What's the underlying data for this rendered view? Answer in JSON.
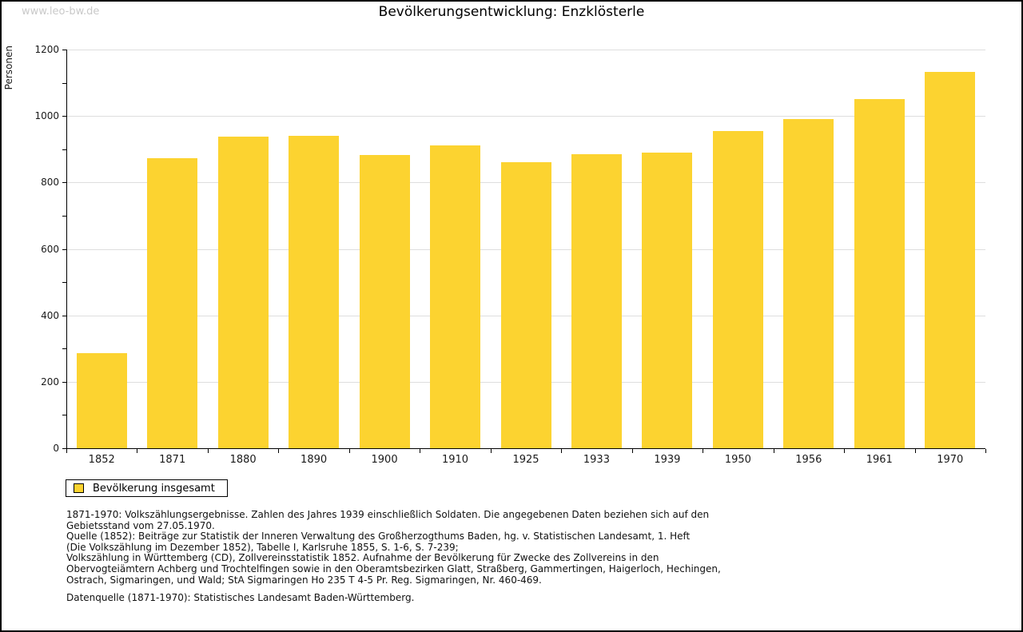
{
  "watermark": "www.leo-bw.de",
  "header": {
    "title": "Bevölkerungsentwicklung: Enzklösterle"
  },
  "legend": {
    "label": "Bevölkerung insgesamt"
  },
  "colors": {
    "bar": "#fcd330",
    "grid": "#dedede",
    "axis": "#000000",
    "watermark": "#c9c9c9"
  },
  "chart_data": {
    "type": "bar",
    "title": "Bevölkerungsentwicklung: Enzklösterle",
    "xlabel": "",
    "ylabel": "Personen",
    "categories": [
      "1852",
      "1871",
      "1880",
      "1890",
      "1900",
      "1910",
      "1925",
      "1933",
      "1939",
      "1950",
      "1956",
      "1961",
      "1970"
    ],
    "series": [
      {
        "name": "Bevölkerung insgesamt",
        "values": [
          287,
          873,
          939,
          941,
          883,
          911,
          861,
          886,
          890,
          955,
          990,
          1050,
          1133
        ]
      }
    ],
    "ylim": [
      0,
      1200
    ],
    "ytick_major_step": 200,
    "ytick_minor_step": 100,
    "grid": true,
    "legend_position": "bottom-left",
    "bar_color": "#fcd330"
  },
  "footnotes": {
    "lines": [
      "1871-1970: Volkszählungsergebnisse. Zahlen des Jahres 1939 einschließlich Soldaten. Die angegebenen Daten beziehen sich auf den",
      "Gebietsstand vom 27.05.1970.",
      "Quelle (1852): Beiträge zur Statistik der Inneren Verwaltung des Großherzogthums Baden, hg. v. Statistischen Landesamt, 1. Heft",
      "(Die Volkszählung im Dezember 1852), Tabelle I, Karlsruhe 1855, S. 1-6, S. 7-239;",
      "Volkszählung in Württemberg (CD), Zollvereinsstatistik 1852. Aufnahme der Bevölkerung für Zwecke des Zollvereins in den",
      "Obervogteiämtern Achberg und Trochtelfingen sowie in den Oberamtsbezirken Glatt, Straßberg, Gammertingen, Haigerloch, Hechingen,",
      "Ostrach, Sigmaringen, und Wald; StA Sigmaringen Ho 235 T 4-5 Pr. Reg. Sigmaringen, Nr. 460-469."
    ],
    "datasource": "Datenquelle (1871-1970): Statistisches Landesamt Baden-Württemberg."
  }
}
